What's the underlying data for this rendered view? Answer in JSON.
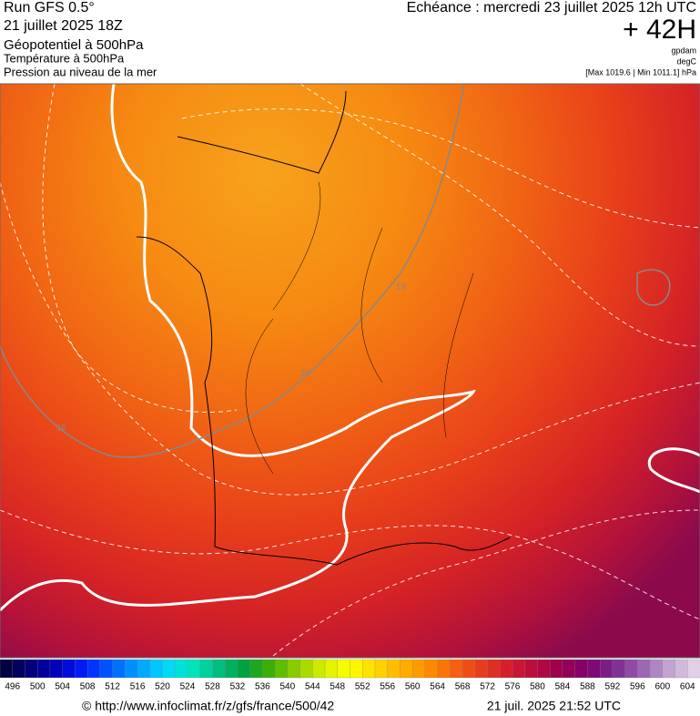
{
  "header": {
    "run": "Run GFS 0.5°",
    "date": "21 juillet 2025 18Z",
    "field1": "Géopotentiel à 500hPa",
    "field2": "Température à 500hPa",
    "field3": "Pression au niveau de la mer",
    "echeance": "Echéance : mercredi 23 juillet 2025 12h UTC",
    "lead": "+ 42H",
    "unit1": "gpdam",
    "unit2": "degC",
    "pressure_range": "[Max 1019.6 | Min 1011.1] hPa"
  },
  "map": {
    "contour_labels": [
      "16",
      "16",
      "16"
    ]
  },
  "legend": {
    "labels": [
      496,
      500,
      504,
      508,
      512,
      516,
      520,
      524,
      528,
      532,
      536,
      540,
      544,
      548,
      552,
      556,
      560,
      564,
      568,
      572,
      576,
      580,
      584,
      588,
      592,
      596,
      600,
      604
    ]
  },
  "footer": {
    "source": "© http://www.infoclimat.fr/z/gfs/france/500/42",
    "timestamp": "21 juil. 2025 21:52 UTC"
  }
}
